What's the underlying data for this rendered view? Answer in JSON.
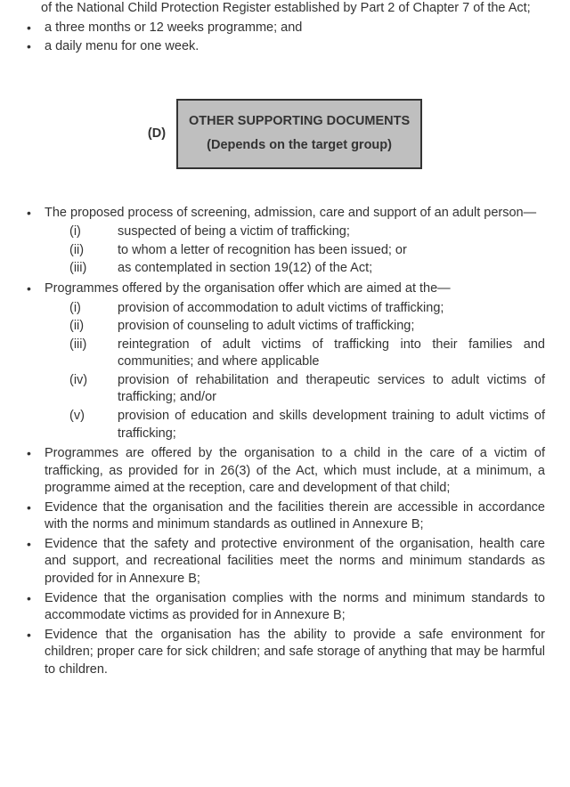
{
  "colors": {
    "text": "#333333",
    "box_bg": "#bfbfbf",
    "box_border": "#333333",
    "page_bg": "#ffffff"
  },
  "top_fragment": "of the National Child Protection Register established by Part 2 of Chapter 7 of the Act;",
  "top_bullets": [
    "a three months or 12 weeks programme; and",
    "a daily menu for one week."
  ],
  "section": {
    "letter": "(D)",
    "title": "OTHER SUPPORTING DOCUMENTS (Depends on the target group)"
  },
  "main_bullets": [
    {
      "text": "The proposed process of screening, admission, care and support of an adult person—",
      "justify": true,
      "sub": [
        {
          "marker": "(i)",
          "text": "suspected of being a victim of trafficking;",
          "justify": false
        },
        {
          "marker": "(ii)",
          "text": "to whom a letter of recognition has been issued; or",
          "justify": false
        },
        {
          "marker": "(iii)",
          "text": "as contemplated in section 19(12) of the Act;",
          "justify": false
        }
      ]
    },
    {
      "text": "Programmes offered by the organisation offer which are aimed at the—",
      "justify": false,
      "sub": [
        {
          "marker": "(i)",
          "text": "provision of accommodation to adult victims of trafficking;",
          "justify": false
        },
        {
          "marker": "(ii)",
          "text": "provision of counseling to adult victims of trafficking;",
          "justify": false
        },
        {
          "marker": "(iii)",
          "text": "reintegration of adult victims of trafficking into their families and communities; and where applicable",
          "justify": true
        },
        {
          "marker": "(iv)",
          "text": "provision of rehabilitation and therapeutic services to adult victims of trafficking; and/or",
          "justify": true
        },
        {
          "marker": "(v)",
          "text": "provision of education and skills development training to adult victims of trafficking;",
          "justify": true
        }
      ]
    },
    {
      "text": "Programmes are offered by the organisation to a child in the care of a victim of trafficking, as provided for in  26(3) of the Act, which must include, at a minimum, a programme aimed at the reception, care and development of that child;",
      "justify": true,
      "sub": []
    },
    {
      "text": "Evidence that the organisation and the facilities therein are accessible in accordance with the norms and minimum standards as outlined in Annexure B;",
      "justify": true,
      "sub": []
    },
    {
      "text": "Evidence that the safety and protective environment of the organisation, health care and support, and recreational facilities meet the norms and minimum standards as provided for in Annexure B;",
      "justify": true,
      "sub": []
    },
    {
      "text": "Evidence that the organisation complies with the norms and minimum standards to accommodate victims as provided for in Annexure B;",
      "justify": true,
      "sub": []
    },
    {
      "text": "Evidence that the organisation has the ability to provide a safe environment for children; proper care for sick children; and safe storage of anything that may be harmful to children.",
      "justify": true,
      "sub": []
    }
  ]
}
